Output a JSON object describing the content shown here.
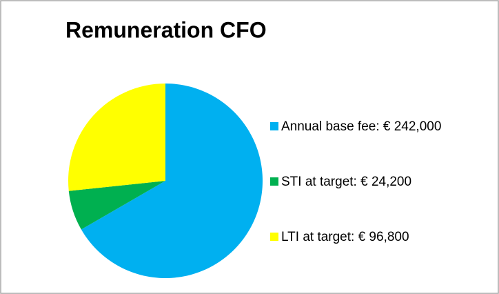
{
  "chart_data": {
    "type": "pie",
    "title": "Remuneration CFO",
    "categories": [
      "Annual base fee: € 242,000",
      "STI at target: € 24,200",
      "LTI at target: € 96,800"
    ],
    "values": [
      242000,
      24200,
      96800
    ],
    "colors": [
      "#00b0f0",
      "#00b050",
      "#ffff00"
    ],
    "legend": "right"
  }
}
